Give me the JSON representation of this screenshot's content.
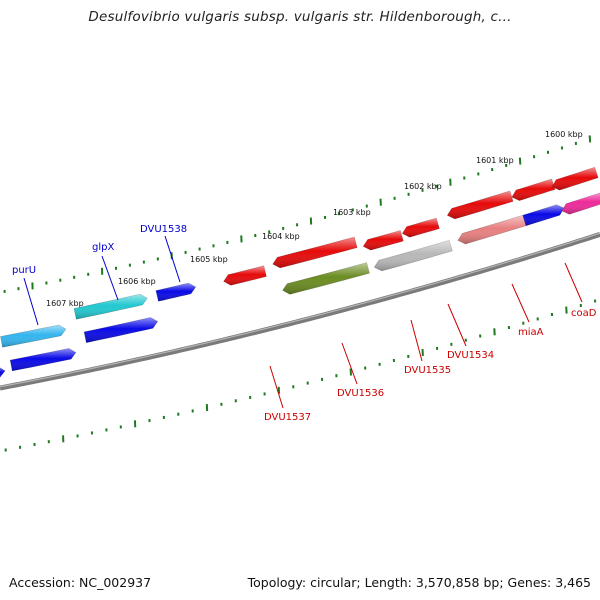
{
  "title": "Desulfovibrio vulgaris subsp. vulgaris str. Hildenborough, c...",
  "footer": {
    "accession": "Accession: NC_002937",
    "topology": "Topology: circular; Length: 3,570,858 bp; Genes: 3,465"
  },
  "ruler_labels": [
    "1600 kbp",
    "1601 kbp",
    "1602 kbp",
    "1603 kbp",
    "1604 kbp",
    "1605 kbp",
    "1606 kbp",
    "1607 kbp"
  ],
  "gene_labels": [
    {
      "text": "purU",
      "color": "#0000cc"
    },
    {
      "text": "glpX",
      "color": "#0000cc"
    },
    {
      "text": "DVU1538",
      "color": "#0000cc"
    },
    {
      "text": "DVU1537",
      "color": "#cc0000"
    },
    {
      "text": "DVU1536",
      "color": "#cc0000"
    },
    {
      "text": "DVU1535",
      "color": "#cc0000"
    },
    {
      "text": "DVU1534",
      "color": "#cc0000"
    },
    {
      "text": "miaA",
      "color": "#cc0000"
    },
    {
      "text": "coaD",
      "color": "#cc0000"
    }
  ],
  "colors": {
    "backbone": "#7a7a7a",
    "ticks": "#1f7a1f",
    "forward_label": "#0000cc",
    "reverse_label": "#cc0000",
    "blue": "#0a0ae6",
    "cyan": "#22c8d0",
    "sky": "#33b5ef",
    "red": "#e60a0a",
    "olive": "#6b8c21",
    "silver": "#b8b8b8",
    "salmon": "#e88080",
    "magenta": "#ee2a9a"
  }
}
